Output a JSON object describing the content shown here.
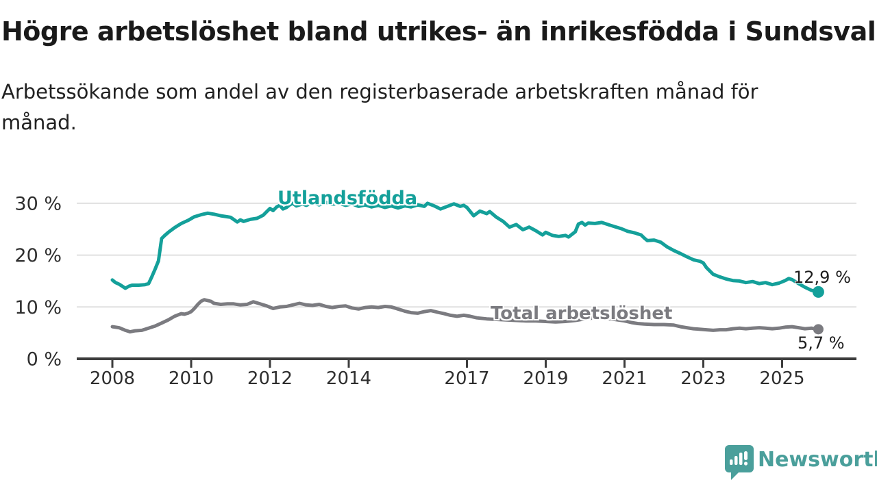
{
  "header": {
    "title": "Högre arbetslöshet bland utrikes- än inrikesfödda i Sundsvall",
    "subtitle": "Arbetssökande som andel av den registerbaserade arbetskraften månad för månad."
  },
  "logo": {
    "brand": "Newsworthy",
    "color": "#4a9f9b",
    "icon": "newsworthy-speech-bubble-bar-chart-icon"
  },
  "chart_data": {
    "type": "line",
    "title": "Högre arbetslöshet bland utrikes- än inrikesfödda i Sundsvall",
    "subtitle": "Arbetssökande som andel av den registerbaserade arbetskraften månad för månad.",
    "xlabel": "",
    "ylabel": "",
    "x_ticks": [
      2008,
      2010,
      2012,
      2014,
      2017,
      2019,
      2021,
      2023,
      2025
    ],
    "y_ticks": [
      0,
      10,
      20,
      30
    ],
    "y_tick_suffix": " %",
    "xlim": [
      2007.1,
      2026.9
    ],
    "ylim": [
      0,
      33
    ],
    "grid": "horizontal",
    "legend_position": "inline-labels",
    "axis_color": "#3d3d3d",
    "grid_color": "#e0e0e0",
    "tick_label_color": "#2e2e2e",
    "series": [
      {
        "name": "Utlandsfödda",
        "color": "#14a09a",
        "end_label": "12,9 %",
        "end_value": 12.9,
        "points": [
          [
            2008.0,
            15.2
          ],
          [
            2008.08,
            14.7
          ],
          [
            2008.17,
            14.4
          ],
          [
            2008.33,
            13.6
          ],
          [
            2008.42,
            14.0
          ],
          [
            2008.5,
            14.2
          ],
          [
            2008.67,
            14.2
          ],
          [
            2008.83,
            14.3
          ],
          [
            2008.92,
            14.5
          ],
          [
            2009.0,
            15.8
          ],
          [
            2009.08,
            17.2
          ],
          [
            2009.17,
            18.9
          ],
          [
            2009.25,
            23.2
          ],
          [
            2009.33,
            23.8
          ],
          [
            2009.42,
            24.4
          ],
          [
            2009.58,
            25.3
          ],
          [
            2009.75,
            26.1
          ],
          [
            2009.92,
            26.7
          ],
          [
            2010.08,
            27.4
          ],
          [
            2010.25,
            27.8
          ],
          [
            2010.42,
            28.1
          ],
          [
            2010.58,
            27.9
          ],
          [
            2010.75,
            27.6
          ],
          [
            2010.92,
            27.4
          ],
          [
            2011.0,
            27.3
          ],
          [
            2011.17,
            26.4
          ],
          [
            2011.25,
            26.8
          ],
          [
            2011.33,
            26.5
          ],
          [
            2011.5,
            26.9
          ],
          [
            2011.67,
            27.1
          ],
          [
            2011.83,
            27.7
          ],
          [
            2011.92,
            28.4
          ],
          [
            2012.0,
            29.0
          ],
          [
            2012.08,
            28.6
          ],
          [
            2012.17,
            29.3
          ],
          [
            2012.25,
            29.6
          ],
          [
            2012.33,
            28.9
          ],
          [
            2012.42,
            29.2
          ],
          [
            2012.5,
            29.7
          ],
          [
            2012.58,
            30.0
          ],
          [
            2012.67,
            29.5
          ],
          [
            2012.83,
            29.9
          ],
          [
            2012.92,
            29.6
          ],
          [
            2013.08,
            30.1
          ],
          [
            2013.25,
            29.7
          ],
          [
            2013.42,
            30.2
          ],
          [
            2013.58,
            29.8
          ],
          [
            2013.75,
            30.0
          ],
          [
            2013.92,
            29.6
          ],
          [
            2014.08,
            29.9
          ],
          [
            2014.25,
            29.4
          ],
          [
            2014.42,
            29.7
          ],
          [
            2014.58,
            29.3
          ],
          [
            2014.75,
            29.6
          ],
          [
            2014.92,
            29.2
          ],
          [
            2015.08,
            29.5
          ],
          [
            2015.25,
            29.1
          ],
          [
            2015.42,
            29.5
          ],
          [
            2015.58,
            29.3
          ],
          [
            2015.75,
            29.7
          ],
          [
            2015.92,
            29.4
          ],
          [
            2016.0,
            30.0
          ],
          [
            2016.17,
            29.5
          ],
          [
            2016.33,
            28.9
          ],
          [
            2016.5,
            29.4
          ],
          [
            2016.67,
            29.9
          ],
          [
            2016.83,
            29.4
          ],
          [
            2016.92,
            29.6
          ],
          [
            2017.0,
            29.2
          ],
          [
            2017.17,
            27.6
          ],
          [
            2017.33,
            28.5
          ],
          [
            2017.5,
            28.0
          ],
          [
            2017.58,
            28.4
          ],
          [
            2017.75,
            27.3
          ],
          [
            2017.92,
            26.5
          ],
          [
            2018.08,
            25.4
          ],
          [
            2018.25,
            25.9
          ],
          [
            2018.42,
            24.9
          ],
          [
            2018.58,
            25.4
          ],
          [
            2018.75,
            24.7
          ],
          [
            2018.92,
            23.9
          ],
          [
            2019.0,
            24.4
          ],
          [
            2019.17,
            23.8
          ],
          [
            2019.33,
            23.6
          ],
          [
            2019.5,
            23.8
          ],
          [
            2019.58,
            23.5
          ],
          [
            2019.75,
            24.5
          ],
          [
            2019.83,
            26.0
          ],
          [
            2019.92,
            26.3
          ],
          [
            2020.0,
            25.8
          ],
          [
            2020.08,
            26.2
          ],
          [
            2020.25,
            26.1
          ],
          [
            2020.42,
            26.3
          ],
          [
            2020.58,
            25.9
          ],
          [
            2020.75,
            25.5
          ],
          [
            2020.92,
            25.1
          ],
          [
            2021.08,
            24.6
          ],
          [
            2021.25,
            24.3
          ],
          [
            2021.42,
            23.9
          ],
          [
            2021.5,
            23.3
          ],
          [
            2021.58,
            22.8
          ],
          [
            2021.75,
            22.9
          ],
          [
            2021.92,
            22.5
          ],
          [
            2022.08,
            21.6
          ],
          [
            2022.25,
            20.9
          ],
          [
            2022.42,
            20.3
          ],
          [
            2022.58,
            19.7
          ],
          [
            2022.75,
            19.1
          ],
          [
            2022.92,
            18.8
          ],
          [
            2023.0,
            18.5
          ],
          [
            2023.08,
            17.6
          ],
          [
            2023.25,
            16.3
          ],
          [
            2023.42,
            15.8
          ],
          [
            2023.58,
            15.4
          ],
          [
            2023.75,
            15.1
          ],
          [
            2023.92,
            15.0
          ],
          [
            2024.08,
            14.7
          ],
          [
            2024.25,
            14.9
          ],
          [
            2024.42,
            14.5
          ],
          [
            2024.58,
            14.7
          ],
          [
            2024.75,
            14.3
          ],
          [
            2024.92,
            14.6
          ],
          [
            2025.08,
            15.1
          ],
          [
            2025.17,
            15.5
          ],
          [
            2025.25,
            15.3
          ],
          [
            2025.42,
            14.5
          ],
          [
            2025.58,
            13.8
          ],
          [
            2025.75,
            13.2
          ],
          [
            2025.92,
            12.9
          ]
        ]
      },
      {
        "name": "Total arbetslöshet",
        "color": "#7b7b80",
        "end_label": "5,7 %",
        "end_value": 5.7,
        "points": [
          [
            2008.0,
            6.2
          ],
          [
            2008.17,
            6.0
          ],
          [
            2008.33,
            5.5
          ],
          [
            2008.45,
            5.2
          ],
          [
            2008.58,
            5.4
          ],
          [
            2008.75,
            5.5
          ],
          [
            2008.92,
            5.9
          ],
          [
            2009.08,
            6.3
          ],
          [
            2009.25,
            6.9
          ],
          [
            2009.42,
            7.5
          ],
          [
            2009.58,
            8.2
          ],
          [
            2009.75,
            8.7
          ],
          [
            2009.83,
            8.6
          ],
          [
            2009.92,
            8.8
          ],
          [
            2010.0,
            9.1
          ],
          [
            2010.08,
            9.7
          ],
          [
            2010.17,
            10.5
          ],
          [
            2010.25,
            11.1
          ],
          [
            2010.33,
            11.4
          ],
          [
            2010.5,
            11.1
          ],
          [
            2010.58,
            10.7
          ],
          [
            2010.75,
            10.5
          ],
          [
            2010.92,
            10.6
          ],
          [
            2011.08,
            10.6
          ],
          [
            2011.25,
            10.4
          ],
          [
            2011.42,
            10.5
          ],
          [
            2011.58,
            11.0
          ],
          [
            2011.75,
            10.6
          ],
          [
            2011.92,
            10.2
          ],
          [
            2012.08,
            9.7
          ],
          [
            2012.25,
            10.0
          ],
          [
            2012.42,
            10.1
          ],
          [
            2012.58,
            10.4
          ],
          [
            2012.75,
            10.7
          ],
          [
            2012.92,
            10.4
          ],
          [
            2013.08,
            10.3
          ],
          [
            2013.25,
            10.5
          ],
          [
            2013.42,
            10.1
          ],
          [
            2013.58,
            9.9
          ],
          [
            2013.75,
            10.1
          ],
          [
            2013.92,
            10.2
          ],
          [
            2014.08,
            9.8
          ],
          [
            2014.25,
            9.6
          ],
          [
            2014.42,
            9.9
          ],
          [
            2014.58,
            10.0
          ],
          [
            2014.75,
            9.9
          ],
          [
            2014.92,
            10.1
          ],
          [
            2015.08,
            10.0
          ],
          [
            2015.25,
            9.6
          ],
          [
            2015.42,
            9.2
          ],
          [
            2015.58,
            8.9
          ],
          [
            2015.75,
            8.8
          ],
          [
            2015.92,
            9.1
          ],
          [
            2016.08,
            9.3
          ],
          [
            2016.25,
            9.0
          ],
          [
            2016.42,
            8.7
          ],
          [
            2016.58,
            8.4
          ],
          [
            2016.75,
            8.2
          ],
          [
            2016.92,
            8.4
          ],
          [
            2017.08,
            8.2
          ],
          [
            2017.25,
            7.9
          ],
          [
            2017.5,
            7.7
          ],
          [
            2017.75,
            7.6
          ],
          [
            2018.0,
            7.5
          ],
          [
            2018.25,
            7.4
          ],
          [
            2018.5,
            7.3
          ],
          [
            2018.75,
            7.3
          ],
          [
            2019.0,
            7.2
          ],
          [
            2019.25,
            7.1
          ],
          [
            2019.5,
            7.2
          ],
          [
            2019.75,
            7.4
          ],
          [
            2020.0,
            7.7
          ],
          [
            2020.25,
            7.9
          ],
          [
            2020.5,
            7.8
          ],
          [
            2020.75,
            7.6
          ],
          [
            2021.0,
            7.3
          ],
          [
            2021.17,
            7.0
          ],
          [
            2021.33,
            6.8
          ],
          [
            2021.5,
            6.7
          ],
          [
            2021.75,
            6.6
          ],
          [
            2022.0,
            6.6
          ],
          [
            2022.25,
            6.5
          ],
          [
            2022.42,
            6.2
          ],
          [
            2022.58,
            6.0
          ],
          [
            2022.75,
            5.8
          ],
          [
            2022.92,
            5.7
          ],
          [
            2023.08,
            5.6
          ],
          [
            2023.25,
            5.5
          ],
          [
            2023.42,
            5.6
          ],
          [
            2023.58,
            5.6
          ],
          [
            2023.75,
            5.8
          ],
          [
            2023.92,
            5.9
          ],
          [
            2024.08,
            5.8
          ],
          [
            2024.25,
            5.9
          ],
          [
            2024.42,
            6.0
          ],
          [
            2024.58,
            5.9
          ],
          [
            2024.75,
            5.8
          ],
          [
            2024.92,
            5.9
          ],
          [
            2025.08,
            6.1
          ],
          [
            2025.25,
            6.2
          ],
          [
            2025.42,
            6.0
          ],
          [
            2025.58,
            5.8
          ],
          [
            2025.75,
            5.9
          ],
          [
            2025.92,
            5.7
          ]
        ]
      }
    ]
  }
}
